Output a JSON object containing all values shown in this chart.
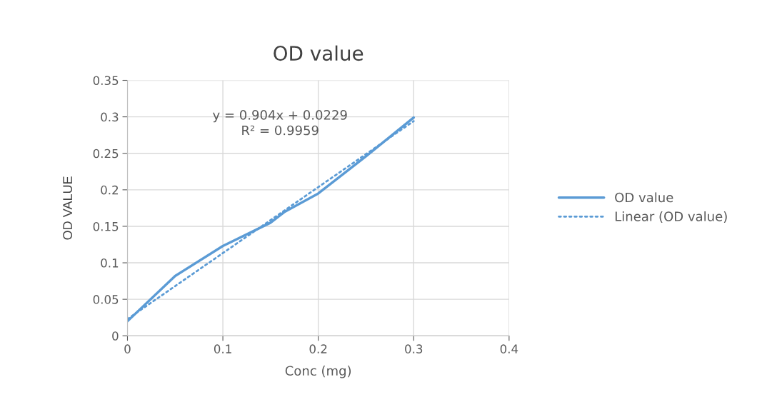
{
  "chart_data": {
    "type": "line",
    "title": "OD value",
    "xlabel": "Conc (mg)",
    "ylabel": "OD VALUE",
    "xlim": [
      0,
      0.4
    ],
    "xticks": [
      0,
      0.1,
      0.2,
      0.3,
      0.4
    ],
    "ylim": [
      0,
      0.35
    ],
    "yticks": [
      0,
      0.05,
      0.1,
      0.15,
      0.2,
      0.25,
      0.3,
      0.35
    ],
    "grid": true,
    "legend": "right",
    "marker": "none",
    "series": [
      {
        "name": "OD value",
        "color": "#5b9bd5",
        "line_style": "solid",
        "x": [
          0,
          0.05,
          0.1,
          0.15,
          0.165,
          0.2,
          0.25,
          0.3
        ],
        "values": [
          0.02,
          0.082,
          0.123,
          0.155,
          0.17,
          0.195,
          0.246,
          0.299
        ]
      },
      {
        "name": "Linear (OD value)",
        "color": "#5b9bd5",
        "line_style": "dotted",
        "x": [
          0,
          0.3
        ],
        "values": [
          0.0229,
          0.2941
        ]
      }
    ],
    "annotations": [
      "y = 0.904x + 0.0229\nR² = 0.9959"
    ]
  }
}
